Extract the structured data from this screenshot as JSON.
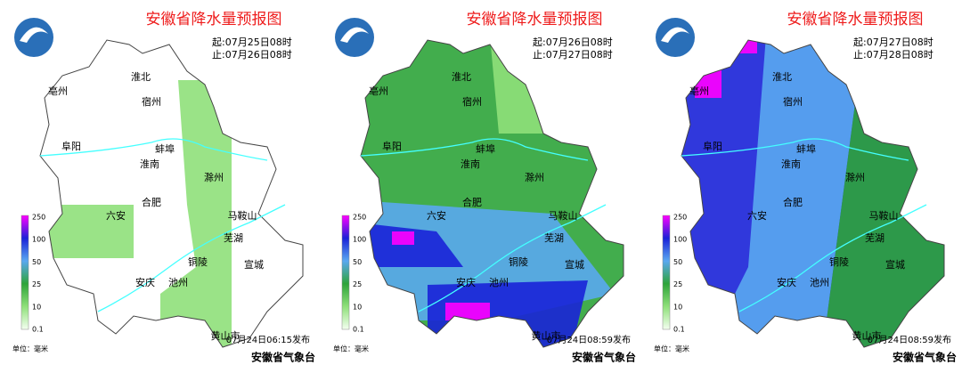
{
  "panels": [
    {
      "title": "安徽省降水量预报图",
      "start": "起:07月25日08时",
      "end": "止:07月26日08时",
      "published": "07月24日06:15发布"
    },
    {
      "title": "安徽省降水量预报图",
      "start": "起:07月26日08时",
      "end": "止:07月27日08时",
      "published": "07月24日08:59发布"
    },
    {
      "title": "安徽省降水量预报图",
      "start": "起:07月27日08时",
      "end": "止:07月28日08时",
      "published": "07月24日08:59发布"
    }
  ],
  "cities": [
    "淮北",
    "亳州",
    "宿州",
    "阜阳",
    "蚌埠",
    "淮南",
    "滁州",
    "六安",
    "合肥",
    "马鞍山",
    "芜湖",
    "铜陵",
    "宣城",
    "安庆",
    "池州",
    "黄山市"
  ],
  "legend": {
    "ticks": [
      "250",
      "100",
      "50",
      "25",
      "10",
      "0.1"
    ],
    "unit": "单位：毫米"
  },
  "agency": "安徽省气象台"
}
